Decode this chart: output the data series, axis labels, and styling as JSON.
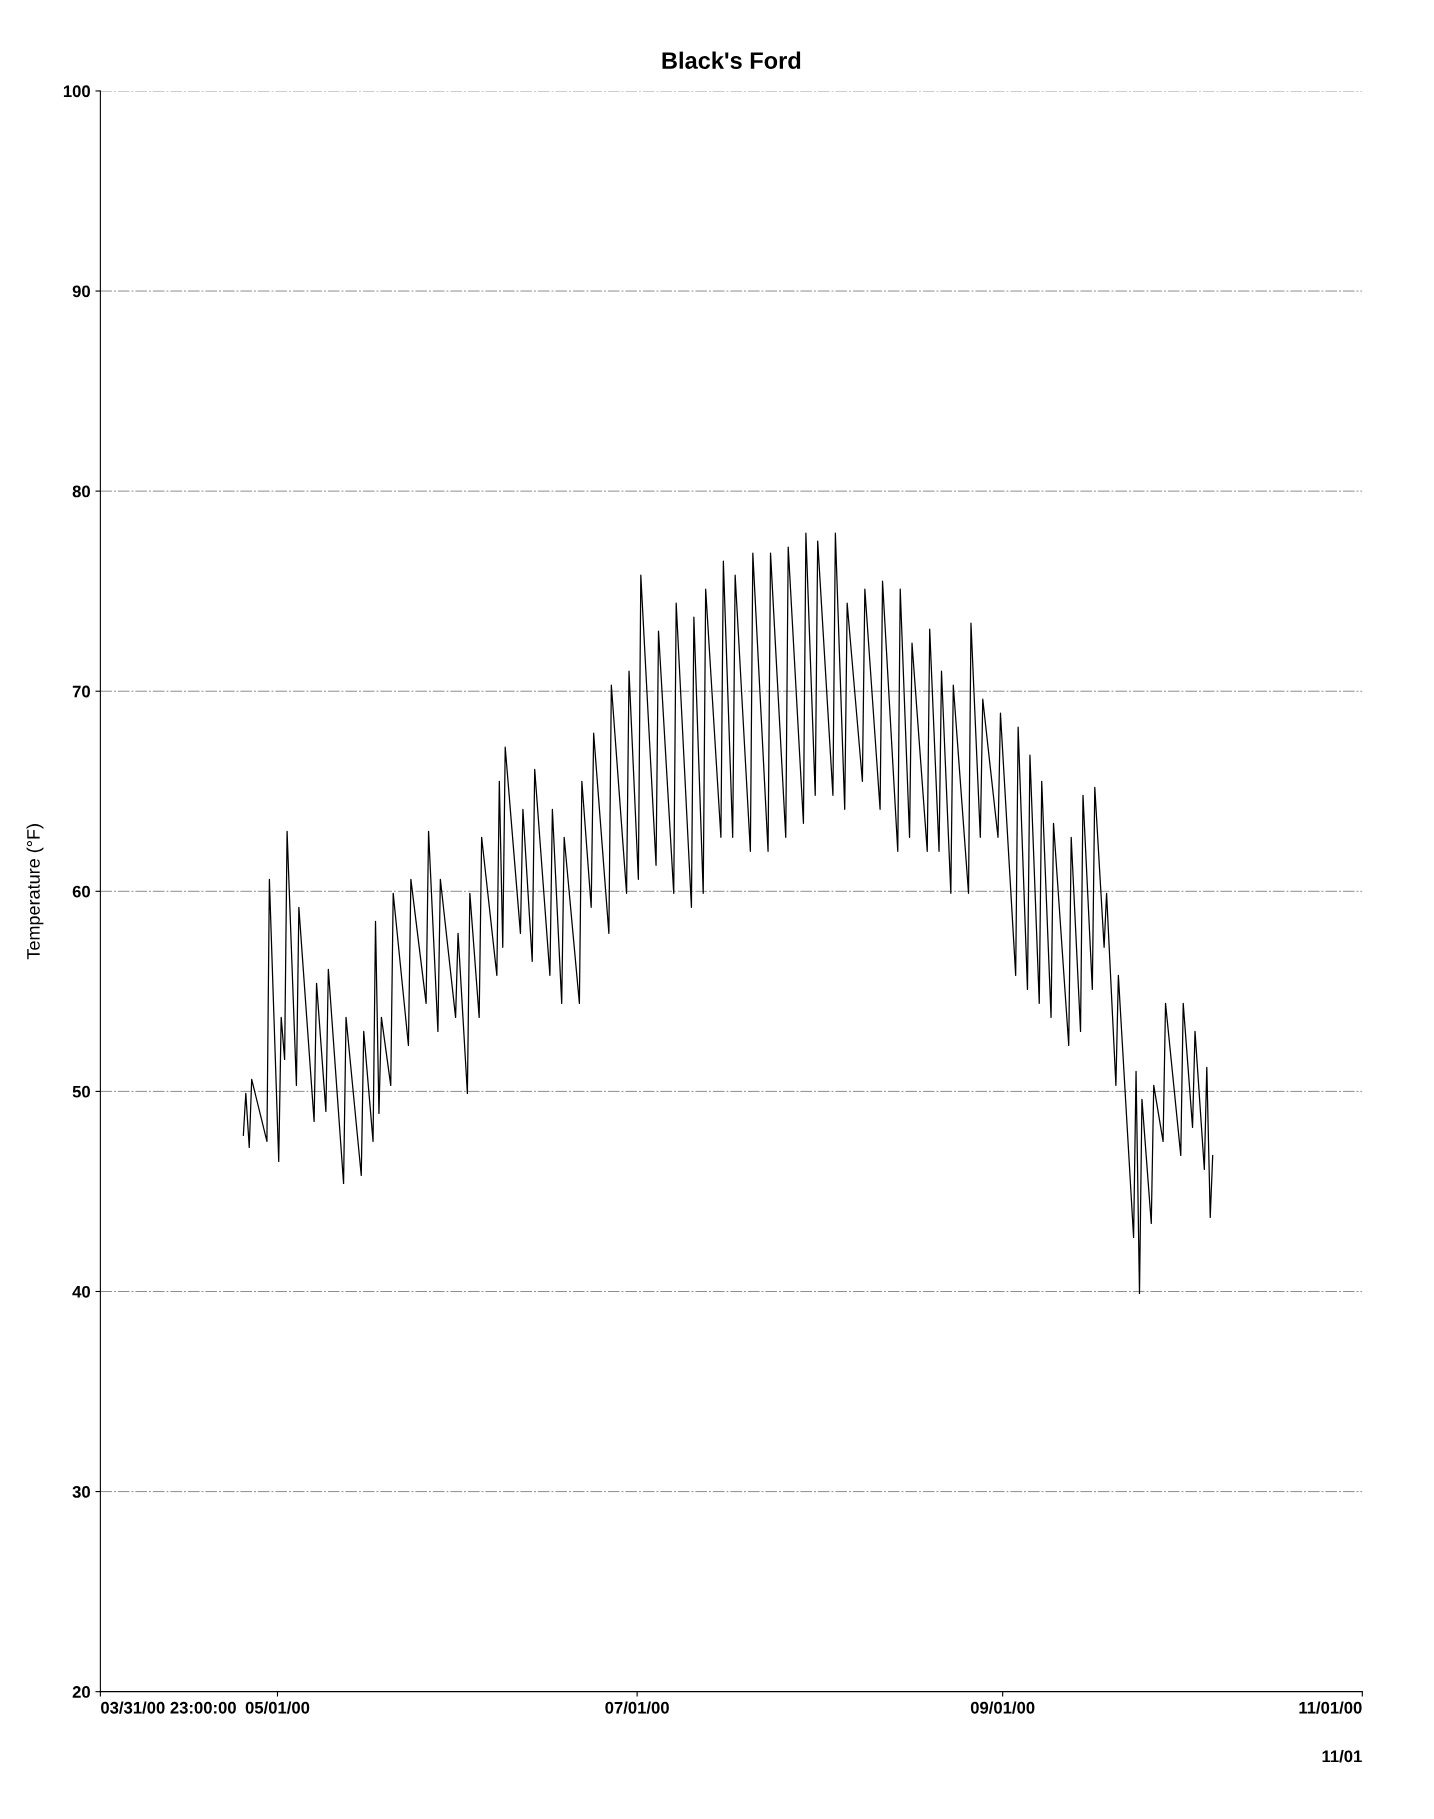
{
  "chart_data": {
    "type": "line",
    "title": "Black's Ford",
    "ylabel": "Temperature (°F)",
    "xlim": [
      "2000-03-31T23:00",
      "2000-11-01"
    ],
    "xticks": [
      {
        "value": "2000-03-31T23:00",
        "label": "03/31/00 23:00:00"
      },
      {
        "value": "2000-05-01",
        "label": "05/01/00"
      },
      {
        "value": "2000-07-01",
        "label": "07/01/00"
      },
      {
        "value": "2000-09-01",
        "label": "09/01/00"
      },
      {
        "value": "2000-11-01",
        "label": "11/01/00"
      }
    ],
    "ylim": [
      20,
      100
    ],
    "yticks": [
      20,
      30,
      40,
      50,
      60,
      70,
      80,
      90,
      100
    ],
    "grid": "y",
    "legend": false,
    "line_style": "solid",
    "marker": "none",
    "annotations": [
      "11/01"
    ],
    "series": [
      {
        "color": "#000000",
        "x": [
          "2000-04-25T05:00",
          "2000-04-25T15:00",
          "2000-04-26T05:00",
          "2000-04-26T15:00",
          "2000-04-29T05:00",
          "2000-04-29T15:00",
          "2000-05-01T05:00",
          "2000-05-01T15:00",
          "2000-05-02T05:00",
          "2000-05-02T15:00",
          "2000-05-04T05:00",
          "2000-05-04T15:00",
          "2000-05-07T05:00",
          "2000-05-07T15:00",
          "2000-05-09T05:00",
          "2000-05-09T15:00",
          "2000-05-12T05:00",
          "2000-05-12T15:00",
          "2000-05-15T05:00",
          "2000-05-15T15:00",
          "2000-05-17T05:00",
          "2000-05-17T15:00",
          "2000-05-18T05:00",
          "2000-05-18T15:00",
          "2000-05-20T05:00",
          "2000-05-20T15:00",
          "2000-05-23T05:00",
          "2000-05-23T15:00",
          "2000-05-26T05:00",
          "2000-05-26T15:00",
          "2000-05-28T05:00",
          "2000-05-28T15:00",
          "2000-05-31T05:00",
          "2000-05-31T15:00",
          "2000-06-02T05:00",
          "2000-06-02T15:00",
          "2000-06-04T05:00",
          "2000-06-04T15:00",
          "2000-06-07T05:00",
          "2000-06-07T15:00",
          "2000-06-08T05:00",
          "2000-06-08T15:00",
          "2000-06-11T05:00",
          "2000-06-11T15:00",
          "2000-06-13T05:00",
          "2000-06-13T15:00",
          "2000-06-16T05:00",
          "2000-06-16T15:00",
          "2000-06-18T05:00",
          "2000-06-18T15:00",
          "2000-06-21T05:00",
          "2000-06-21T15:00",
          "2000-06-23T05:00",
          "2000-06-23T15:00",
          "2000-06-26T05:00",
          "2000-06-26T15:00",
          "2000-06-29T05:00",
          "2000-06-29T15:00",
          "2000-07-01T05:00",
          "2000-07-01T15:00",
          "2000-07-04T05:00",
          "2000-07-04T15:00",
          "2000-07-07T05:00",
          "2000-07-07T15:00",
          "2000-07-10T05:00",
          "2000-07-10T15:00",
          "2000-07-12T05:00",
          "2000-07-12T15:00",
          "2000-07-15T05:00",
          "2000-07-15T15:00",
          "2000-07-17T05:00",
          "2000-07-17T15:00",
          "2000-07-20T05:00",
          "2000-07-20T15:00",
          "2000-07-23T05:00",
          "2000-07-23T15:00",
          "2000-07-26T05:00",
          "2000-07-26T15:00",
          "2000-07-29T05:00",
          "2000-07-29T15:00",
          "2000-07-31T05:00",
          "2000-07-31T15:00",
          "2000-08-03T05:00",
          "2000-08-03T15:00",
          "2000-08-05T05:00",
          "2000-08-05T15:00",
          "2000-08-08T05:00",
          "2000-08-08T15:00",
          "2000-08-11T05:00",
          "2000-08-11T15:00",
          "2000-08-14T05:00",
          "2000-08-14T15:00",
          "2000-08-16T05:00",
          "2000-08-16T15:00",
          "2000-08-19T05:00",
          "2000-08-19T15:00",
          "2000-08-21T05:00",
          "2000-08-21T15:00",
          "2000-08-23T05:00",
          "2000-08-23T15:00",
          "2000-08-26T05:00",
          "2000-08-26T15:00",
          "2000-08-28T05:00",
          "2000-08-28T15:00",
          "2000-08-31T05:00",
          "2000-08-31T15:00",
          "2000-09-03T05:00",
          "2000-09-03T15:00",
          "2000-09-05T05:00",
          "2000-09-05T15:00",
          "2000-09-07T05:00",
          "2000-09-07T15:00",
          "2000-09-09T05:00",
          "2000-09-09T15:00",
          "2000-09-12T05:00",
          "2000-09-12T15:00",
          "2000-09-14T05:00",
          "2000-09-14T15:00",
          "2000-09-16T05:00",
          "2000-09-16T15:00",
          "2000-09-18T05:00",
          "2000-09-18T15:00",
          "2000-09-20T05:00",
          "2000-09-20T15:00",
          "2000-09-23T05:00",
          "2000-09-23T15:00",
          "2000-09-24T05:00",
          "2000-09-24T15:00",
          "2000-09-26T05:00",
          "2000-09-26T15:00",
          "2000-09-28T05:00",
          "2000-09-28T15:00",
          "2000-10-01T05:00",
          "2000-10-01T15:00",
          "2000-10-03T05:00",
          "2000-10-03T15:00",
          "2000-10-05T05:00",
          "2000-10-05T15:00",
          "2000-10-06T05:00",
          "2000-10-06T15:00"
        ],
        "values": [
          47.8,
          49.9,
          47.2,
          50.6,
          47.5,
          60.6,
          46.5,
          53.7,
          51.6,
          63.0,
          50.3,
          59.2,
          48.5,
          55.4,
          49.0,
          56.1,
          45.4,
          53.7,
          45.8,
          53.0,
          47.5,
          58.5,
          48.9,
          53.7,
          50.3,
          59.9,
          52.3,
          60.6,
          54.4,
          63.0,
          53.0,
          60.6,
          53.7,
          57.9,
          49.9,
          59.9,
          53.7,
          62.7,
          55.8,
          65.5,
          57.2,
          67.2,
          57.9,
          64.1,
          56.5,
          66.1,
          55.8,
          64.1,
          54.4,
          62.7,
          54.4,
          65.5,
          59.2,
          67.9,
          57.9,
          70.3,
          59.9,
          71.0,
          60.6,
          75.8,
          61.3,
          73.0,
          59.9,
          74.4,
          59.2,
          73.7,
          59.9,
          75.1,
          62.7,
          76.5,
          62.7,
          75.8,
          62.0,
          76.9,
          62.0,
          76.9,
          62.7,
          77.2,
          63.4,
          77.9,
          64.8,
          77.5,
          64.8,
          77.9,
          64.1,
          74.4,
          65.5,
          75.1,
          64.1,
          75.5,
          62.0,
          75.1,
          62.7,
          72.4,
          62.0,
          73.1,
          62.0,
          71.0,
          59.9,
          70.3,
          59.9,
          73.4,
          62.7,
          69.6,
          62.7,
          68.9,
          55.8,
          68.2,
          55.1,
          66.8,
          54.4,
          65.5,
          53.7,
          63.4,
          52.3,
          62.7,
          53.0,
          64.8,
          55.1,
          65.2,
          57.2,
          59.9,
          50.3,
          55.8,
          42.7,
          51.0,
          39.9,
          49.6,
          43.4,
          50.3,
          47.5,
          54.4,
          46.8,
          54.4,
          48.2,
          53.0,
          46.1,
          51.2,
          43.7,
          46.8
        ]
      }
    ]
  }
}
